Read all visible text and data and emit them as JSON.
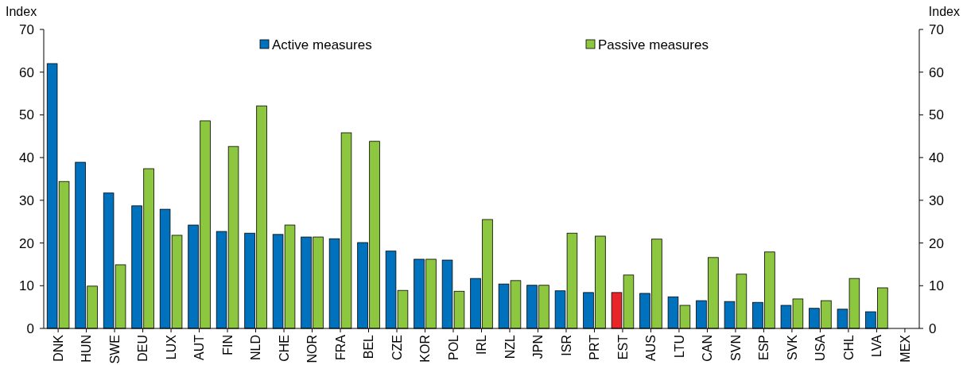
{
  "chart_data": {
    "type": "bar",
    "ylabel": "Index",
    "y2label": "Index",
    "categories": [
      "DNK",
      "HUN",
      "SWE",
      "DEU",
      "LUX",
      "AUT",
      "FIN",
      "NLD",
      "CHE",
      "NOR",
      "FRA",
      "BEL",
      "CZE",
      "KOR",
      "POL",
      "IRL",
      "NZL",
      "JPN",
      "ISR",
      "PRT",
      "EST",
      "AUS",
      "LTU",
      "CAN",
      "SVN",
      "ESP",
      "SVK",
      "USA",
      "CHL",
      "LVA",
      "MEX"
    ],
    "series": [
      {
        "name": "Active measures",
        "color": "#0071bc",
        "colors": [
          "#0071bc",
          "#0071bc",
          "#0071bc",
          "#0071bc",
          "#0071bc",
          "#0071bc",
          "#0071bc",
          "#0071bc",
          "#0071bc",
          "#0071bc",
          "#0071bc",
          "#0071bc",
          "#0071bc",
          "#0071bc",
          "#0071bc",
          "#0071bc",
          "#0071bc",
          "#0071bc",
          "#0071bc",
          "#0071bc",
          "#e8262a",
          "#0071bc",
          "#0071bc",
          "#0071bc",
          "#0071bc",
          "#0071bc",
          "#0071bc",
          "#0071bc",
          "#0071bc",
          "#0071bc",
          "#0071bc"
        ],
        "values": [
          62.0,
          38.9,
          31.7,
          28.7,
          27.9,
          24.2,
          22.7,
          22.3,
          22.0,
          21.4,
          21.0,
          20.1,
          18.1,
          16.2,
          16.0,
          11.7,
          10.4,
          10.1,
          8.8,
          8.4,
          8.4,
          8.2,
          7.4,
          6.5,
          6.3,
          6.1,
          5.4,
          4.7,
          4.5,
          3.9,
          null
        ]
      },
      {
        "name": "Passive measures",
        "color": "#8dc63f",
        "values": [
          34.4,
          9.9,
          14.9,
          37.4,
          21.8,
          48.6,
          42.6,
          52.1,
          24.2,
          21.4,
          45.8,
          43.8,
          8.9,
          16.2,
          8.7,
          25.5,
          11.2,
          10.1,
          22.3,
          21.6,
          12.5,
          20.9,
          5.4,
          16.6,
          12.7,
          17.9,
          6.9,
          6.5,
          11.7,
          9.5,
          null
        ]
      }
    ],
    "ylim": [
      0,
      70
    ],
    "yticks": [
      0,
      10,
      20,
      30,
      40,
      50,
      60,
      70
    ],
    "y2lim": [
      0,
      70
    ],
    "y2ticks": [
      0,
      10,
      20,
      30,
      40,
      50,
      60,
      70
    ],
    "legend": "top",
    "grid": false
  }
}
